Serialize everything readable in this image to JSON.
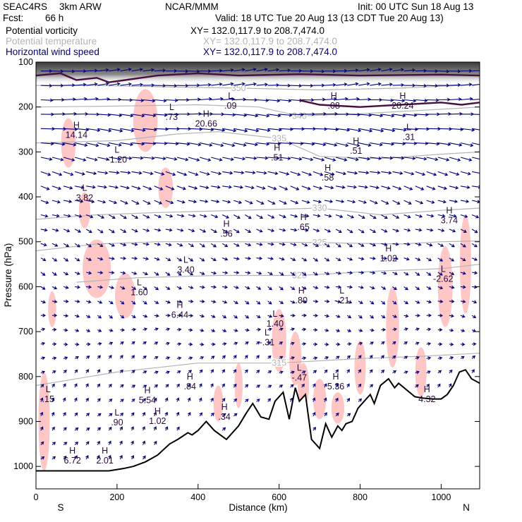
{
  "header": {
    "source": "SEAC4RS",
    "model": "3km ARW",
    "fcst_label": "Fcst:",
    "fcst_value": "66 h",
    "org": "NCAR/MMM",
    "init": "Init: 00 UTC Sun 18 Aug 13",
    "valid": "Valid: 18 UTC Tue 20 Aug 13 (13 CDT Tue 20 Aug 13)",
    "fields": [
      {
        "name": "Potential vorticity",
        "xy": "XY= 132.0,117.9 to 208.7,474.0",
        "color": "#000000"
      },
      {
        "name": "Potential temperature",
        "xy": "XY= 132.0,117.9 to 208.7,474.0",
        "color": "#b4b4b4"
      },
      {
        "name": "Horizontal wind speed",
        "xy": "XY= 132.0,117.9 to 208.7,474.0",
        "color": "#00007a"
      }
    ]
  },
  "chart_data": {
    "type": "cross-section",
    "xlabel": "Distance (km)",
    "ylabel": "Pressure (hPa)",
    "xlim": [
      0,
      1095
    ],
    "ylim": [
      1050,
      100
    ],
    "x_ticks": [
      0,
      200,
      400,
      600,
      800,
      1000
    ],
    "y_ticks": [
      100,
      200,
      300,
      400,
      500,
      600,
      700,
      800,
      900,
      1000
    ],
    "left_end_label": "S",
    "right_end_label": "N",
    "colors": {
      "pv": "#4a0e40",
      "theta": "#b4b4b4",
      "wind": "#00007a",
      "pv_shade": "#ffbcbc",
      "terrain": "#000000"
    },
    "terrain": [
      [
        0,
        1010
      ],
      [
        60,
        1010
      ],
      [
        120,
        1010
      ],
      [
        180,
        1010
      ],
      [
        215,
        1005
      ],
      [
        240,
        1000
      ],
      [
        270,
        990
      ],
      [
        300,
        975
      ],
      [
        330,
        950
      ],
      [
        350,
        940
      ],
      [
        375,
        925
      ],
      [
        385,
        930
      ],
      [
        400,
        920
      ],
      [
        420,
        900
      ],
      [
        440,
        920
      ],
      [
        470,
        940
      ],
      [
        500,
        910
      ],
      [
        520,
        880
      ],
      [
        535,
        860
      ],
      [
        555,
        890
      ],
      [
        575,
        895
      ],
      [
        590,
        855
      ],
      [
        610,
        835
      ],
      [
        625,
        895
      ],
      [
        640,
        825
      ],
      [
        650,
        855
      ],
      [
        665,
        840
      ],
      [
        680,
        940
      ],
      [
        700,
        960
      ],
      [
        715,
        905
      ],
      [
        730,
        935
      ],
      [
        745,
        910
      ],
      [
        755,
        920
      ],
      [
        765,
        905
      ],
      [
        780,
        900
      ],
      [
        795,
        870
      ],
      [
        815,
        850
      ],
      [
        825,
        840
      ],
      [
        835,
        860
      ],
      [
        850,
        820
      ],
      [
        870,
        805
      ],
      [
        885,
        825
      ],
      [
        895,
        815
      ],
      [
        915,
        830
      ],
      [
        935,
        845
      ],
      [
        955,
        848
      ],
      [
        980,
        850
      ],
      [
        1000,
        850
      ],
      [
        1015,
        840
      ],
      [
        1030,
        820
      ],
      [
        1045,
        790
      ],
      [
        1060,
        785
      ],
      [
        1075,
        805
      ],
      [
        1095,
        815
      ]
    ],
    "theta_contours": [
      {
        "level": 350,
        "points": [
          [
            0,
            152
          ],
          [
            150,
            152
          ],
          [
            300,
            155
          ],
          [
            500,
            158
          ],
          [
            700,
            162
          ],
          [
            900,
            158
          ],
          [
            1095,
            150
          ]
        ]
      },
      {
        "level": 340,
        "points": [
          [
            0,
            200
          ],
          [
            200,
            198
          ],
          [
            400,
            195
          ],
          [
            550,
            200
          ],
          [
            650,
            220
          ],
          [
            800,
            215
          ],
          [
            1000,
            205
          ],
          [
            1095,
            200
          ]
        ]
      },
      {
        "level": 335,
        "points": [
          [
            0,
            280
          ],
          [
            200,
            275
          ],
          [
            350,
            260
          ],
          [
            450,
            255
          ],
          [
            600,
            270
          ],
          [
            700,
            310
          ],
          [
            850,
            315
          ],
          [
            1000,
            305
          ],
          [
            1095,
            300
          ]
        ]
      },
      {
        "level": 330,
        "points": [
          [
            0,
            450
          ],
          [
            150,
            440
          ],
          [
            300,
            435
          ],
          [
            500,
            430
          ],
          [
            700,
            425
          ],
          [
            850,
            440
          ],
          [
            1000,
            430
          ],
          [
            1095,
            425
          ]
        ]
      },
      {
        "level": 325,
        "points": [
          [
            0,
            520
          ],
          [
            150,
            505
          ],
          [
            300,
            500
          ],
          [
            500,
            500
          ],
          [
            700,
            502
          ],
          [
            900,
            505
          ],
          [
            1000,
            500
          ],
          [
            1095,
            498
          ]
        ]
      },
      {
        "level": 320,
        "points": [
          [
            100,
            590
          ],
          [
            250,
            580
          ],
          [
            450,
            575
          ],
          [
            650,
            575
          ],
          [
            850,
            565
          ],
          [
            1000,
            560
          ],
          [
            1095,
            550
          ]
        ]
      },
      {
        "level": 315,
        "points": [
          [
            0,
            820
          ],
          [
            200,
            790
          ],
          [
            400,
            770
          ],
          [
            600,
            770
          ],
          [
            800,
            760
          ],
          [
            950,
            755
          ],
          [
            1095,
            748
          ]
        ]
      }
    ],
    "pv_contours": [
      {
        "points": [
          [
            0,
            130
          ],
          [
            60,
            125
          ],
          [
            100,
            140
          ],
          [
            150,
            135
          ],
          [
            180,
            145
          ],
          [
            220,
            140
          ],
          [
            300,
            130
          ],
          [
            400,
            125
          ],
          [
            500,
            130
          ],
          [
            650,
            127
          ],
          [
            800,
            130
          ],
          [
            1000,
            128
          ],
          [
            1095,
            130
          ]
        ]
      },
      {
        "points": [
          [
            650,
            185
          ],
          [
            700,
            195
          ],
          [
            800,
            200
          ],
          [
            900,
            195
          ],
          [
            1000,
            190
          ],
          [
            1050,
            195
          ],
          [
            1095,
            190
          ]
        ]
      }
    ],
    "extrema": [
      {
        "type": "L",
        "value": ".09",
        "x": 480,
        "y": 185
      },
      {
        "type": "H",
        "value": ".08",
        "x": 735,
        "y": 185
      },
      {
        "type": "H",
        "value": "20.24",
        "x": 905,
        "y": 185
      },
      {
        "type": "L",
        "value": ".73",
        "x": 335,
        "y": 210
      },
      {
        "type": "H",
        "value": "20.66",
        "x": 420,
        "y": 225
      },
      {
        "type": "H",
        "value": "14.14",
        "x": 100,
        "y": 250
      },
      {
        "type": "L",
        "value": "-1.20",
        "x": 200,
        "y": 305
      },
      {
        "type": "H",
        "value": ".51",
        "x": 595,
        "y": 300
      },
      {
        "type": "H",
        "value": ".51",
        "x": 790,
        "y": 285
      },
      {
        "type": "H",
        "value": ".58",
        "x": 720,
        "y": 345
      },
      {
        "type": "L",
        "value": ".31",
        "x": 920,
        "y": 255
      },
      {
        "type": "L",
        "value": "3.82",
        "x": 120,
        "y": 390
      },
      {
        "type": "H",
        "value": ".56",
        "x": 470,
        "y": 470
      },
      {
        "type": "H",
        "value": ".65",
        "x": 660,
        "y": 455
      },
      {
        "type": "H",
        "value": "3.74",
        "x": 1020,
        "y": 440
      },
      {
        "type": "H",
        "value": "1.02",
        "x": 870,
        "y": 525
      },
      {
        "type": "L",
        "value": "3.40",
        "x": 370,
        "y": 550
      },
      {
        "type": "L",
        "value": "-2.62",
        "x": 1005,
        "y": 570
      },
      {
        "type": "L",
        "value": "1.60",
        "x": 255,
        "y": 600
      },
      {
        "type": "H",
        "value": "6.44",
        "x": 355,
        "y": 650
      },
      {
        "type": "H",
        "value": ".80",
        "x": 655,
        "y": 618
      },
      {
        "type": "L",
        "value": "-.21",
        "x": 755,
        "y": 618
      },
      {
        "type": "L",
        "value": "1.40",
        "x": 590,
        "y": 670
      },
      {
        "type": "L",
        "value": "-.31",
        "x": 570,
        "y": 712
      },
      {
        "type": "H",
        "value": ".84",
        "x": 380,
        "y": 810
      },
      {
        "type": "L",
        "value": "-.47",
        "x": 650,
        "y": 790
      },
      {
        "type": "H",
        "value": "5.36",
        "x": 740,
        "y": 810
      },
      {
        "type": "H",
        "value": "5.54",
        "x": 275,
        "y": 840
      },
      {
        "type": "H",
        "value": "4.32",
        "x": 965,
        "y": 838
      },
      {
        "type": "H",
        "value": "1.02",
        "x": 300,
        "y": 887
      },
      {
        "type": "L",
        "value": ".90",
        "x": 200,
        "y": 890
      },
      {
        "type": "H",
        "value": ".34",
        "x": 465,
        "y": 877
      },
      {
        "type": "L",
        "value": ".15",
        "x": 30,
        "y": 838
      },
      {
        "type": "H",
        "value": "6.72",
        "x": 90,
        "y": 975
      },
      {
        "type": "H",
        "value": "2.01",
        "x": 170,
        "y": 975
      }
    ],
    "wind_profile": [
      {
        "p": 150,
        "u": 14,
        "v": 1
      },
      {
        "p": 250,
        "u": 18,
        "v": -2
      },
      {
        "p": 350,
        "u": 12,
        "v": -3
      },
      {
        "p": 450,
        "u": 7,
        "v": -3
      },
      {
        "p": 550,
        "u": 5,
        "v": -2
      },
      {
        "p": 650,
        "u": 4,
        "v": -2
      },
      {
        "p": 750,
        "u": 3,
        "v": 2
      },
      {
        "p": 850,
        "u": 2,
        "v": 3
      },
      {
        "p": 950,
        "u": 2,
        "v": 3
      }
    ]
  }
}
